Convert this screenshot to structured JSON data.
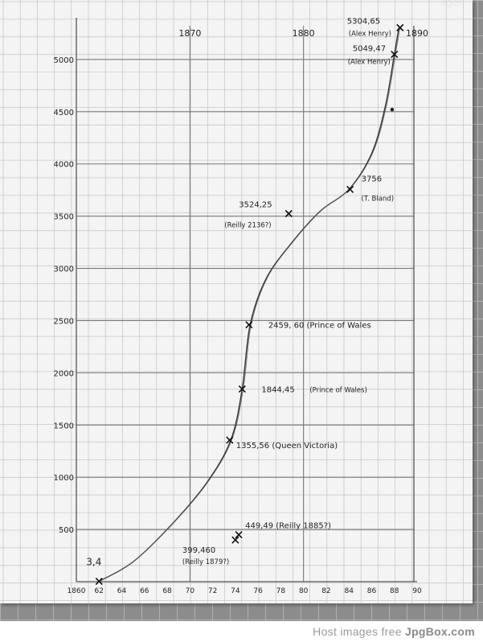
{
  "corner_text": "ager",
  "footer": {
    "prefix": "Host images free ",
    "brand": "JpgBox.com"
  },
  "chart_data": {
    "type": "line",
    "x_axis": {
      "range": [
        1860,
        1890
      ],
      "tick_values": [
        1860,
        1862,
        1864,
        1866,
        1868,
        1870,
        1872,
        1874,
        1876,
        1878,
        1880,
        1882,
        1884,
        1886,
        1888,
        1890
      ],
      "tick_labels": [
        "1860",
        "62",
        "64",
        "66",
        "68",
        "70",
        "72",
        "74",
        "76",
        "78",
        "80",
        "82",
        "84",
        "86",
        "88",
        "90"
      ],
      "top_labels": [
        {
          "value": 1870,
          "text": "1870"
        },
        {
          "value": 1880,
          "text": "1880"
        },
        {
          "value": 1890,
          "text": "1890"
        }
      ]
    },
    "y_axis": {
      "range": [
        0,
        5400
      ],
      "tick_values": [
        500,
        1000,
        1500,
        2000,
        2500,
        3000,
        3500,
        4000,
        4500,
        5000
      ],
      "tick_labels": [
        "500",
        "1000",
        "1500",
        "2000",
        "2500",
        "3000",
        "3500",
        "4000",
        "4500",
        "5000"
      ]
    },
    "grid": true,
    "curve": [
      [
        1862.0,
        3.4
      ],
      [
        1865.0,
        190
      ],
      [
        1868.5,
        560
      ],
      [
        1871.5,
        950
      ],
      [
        1873.6,
        1355.56
      ],
      [
        1874.6,
        1844.45
      ],
      [
        1875.3,
        2459.6
      ],
      [
        1876.7,
        2900
      ],
      [
        1879.0,
        3250
      ],
      [
        1881.5,
        3550
      ],
      [
        1884.0,
        3756
      ],
      [
        1886.0,
        4100
      ],
      [
        1887.2,
        4550
      ],
      [
        1888.0,
        5049.47
      ],
      [
        1888.4,
        5304.65
      ]
    ],
    "points": [
      {
        "x": 1862.0,
        "y": 3.4,
        "label": "3,4",
        "note": "",
        "marker": "x"
      },
      {
        "x": 1874.0,
        "y": 399.46,
        "label": "399,460",
        "note": "(Reilly 1879?)",
        "marker": "x"
      },
      {
        "x": 1874.3,
        "y": 449.49,
        "label": "449,49 (Reilly 1885?)",
        "note": "",
        "marker": "x"
      },
      {
        "x": 1873.5,
        "y": 1355.56,
        "label": "1355,56 (Queen Victoria)",
        "note": "",
        "marker": "x"
      },
      {
        "x": 1874.6,
        "y": 1844.45,
        "label": "1844,45",
        "note": "(Prince of Wales)",
        "marker": "x"
      },
      {
        "x": 1875.2,
        "y": 2459.6,
        "label": "2459, 60 (Prince of Wales",
        "note": "",
        "marker": "x"
      },
      {
        "x": 1878.7,
        "y": 3524.25,
        "label": "3524,25",
        "note": "(Reilly 2136?)",
        "marker": "x"
      },
      {
        "x": 1884.1,
        "y": 3756,
        "label": "3756",
        "note": "(T. Bland)",
        "marker": "x"
      },
      {
        "x": 1887.8,
        "y": 4520,
        "label": "",
        "note": "",
        "marker": "dot"
      },
      {
        "x": 1888.0,
        "y": 5049.47,
        "label": "5049,47",
        "note": "(Alex Henry)",
        "marker": "x"
      },
      {
        "x": 1888.5,
        "y": 5304.65,
        "label": "5304,65",
        "note": "(Alex Henry)",
        "marker": "x"
      }
    ]
  }
}
